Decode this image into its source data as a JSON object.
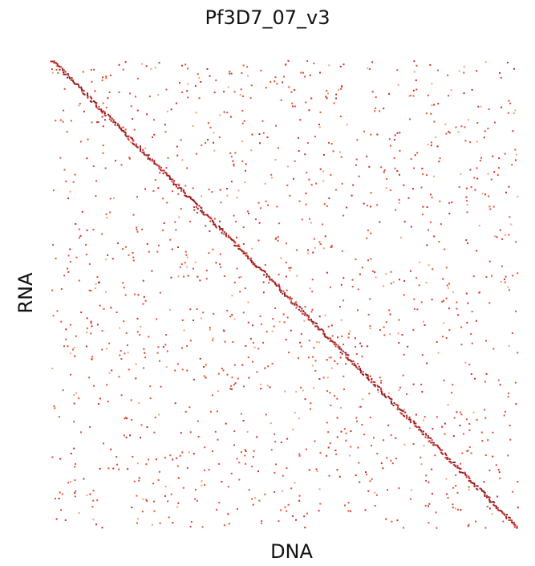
{
  "chart_data": {
    "type": "heatmap",
    "title": "Pf3D7_07_v3",
    "xlabel": "DNA",
    "ylabel": "RNA",
    "grid": false,
    "legend": "none",
    "colors": {
      "strong": "#8b1a1a",
      "medium": "#cc2a2a",
      "weak": "#e05030",
      "faint": "#f5a070",
      "background": "#ffffff"
    },
    "diagonal_band": "strong contacts along the main diagonal from top-left to bottom-right",
    "scatter_density": "sparse off-diagonal contacts distributed across the whole matrix"
  }
}
